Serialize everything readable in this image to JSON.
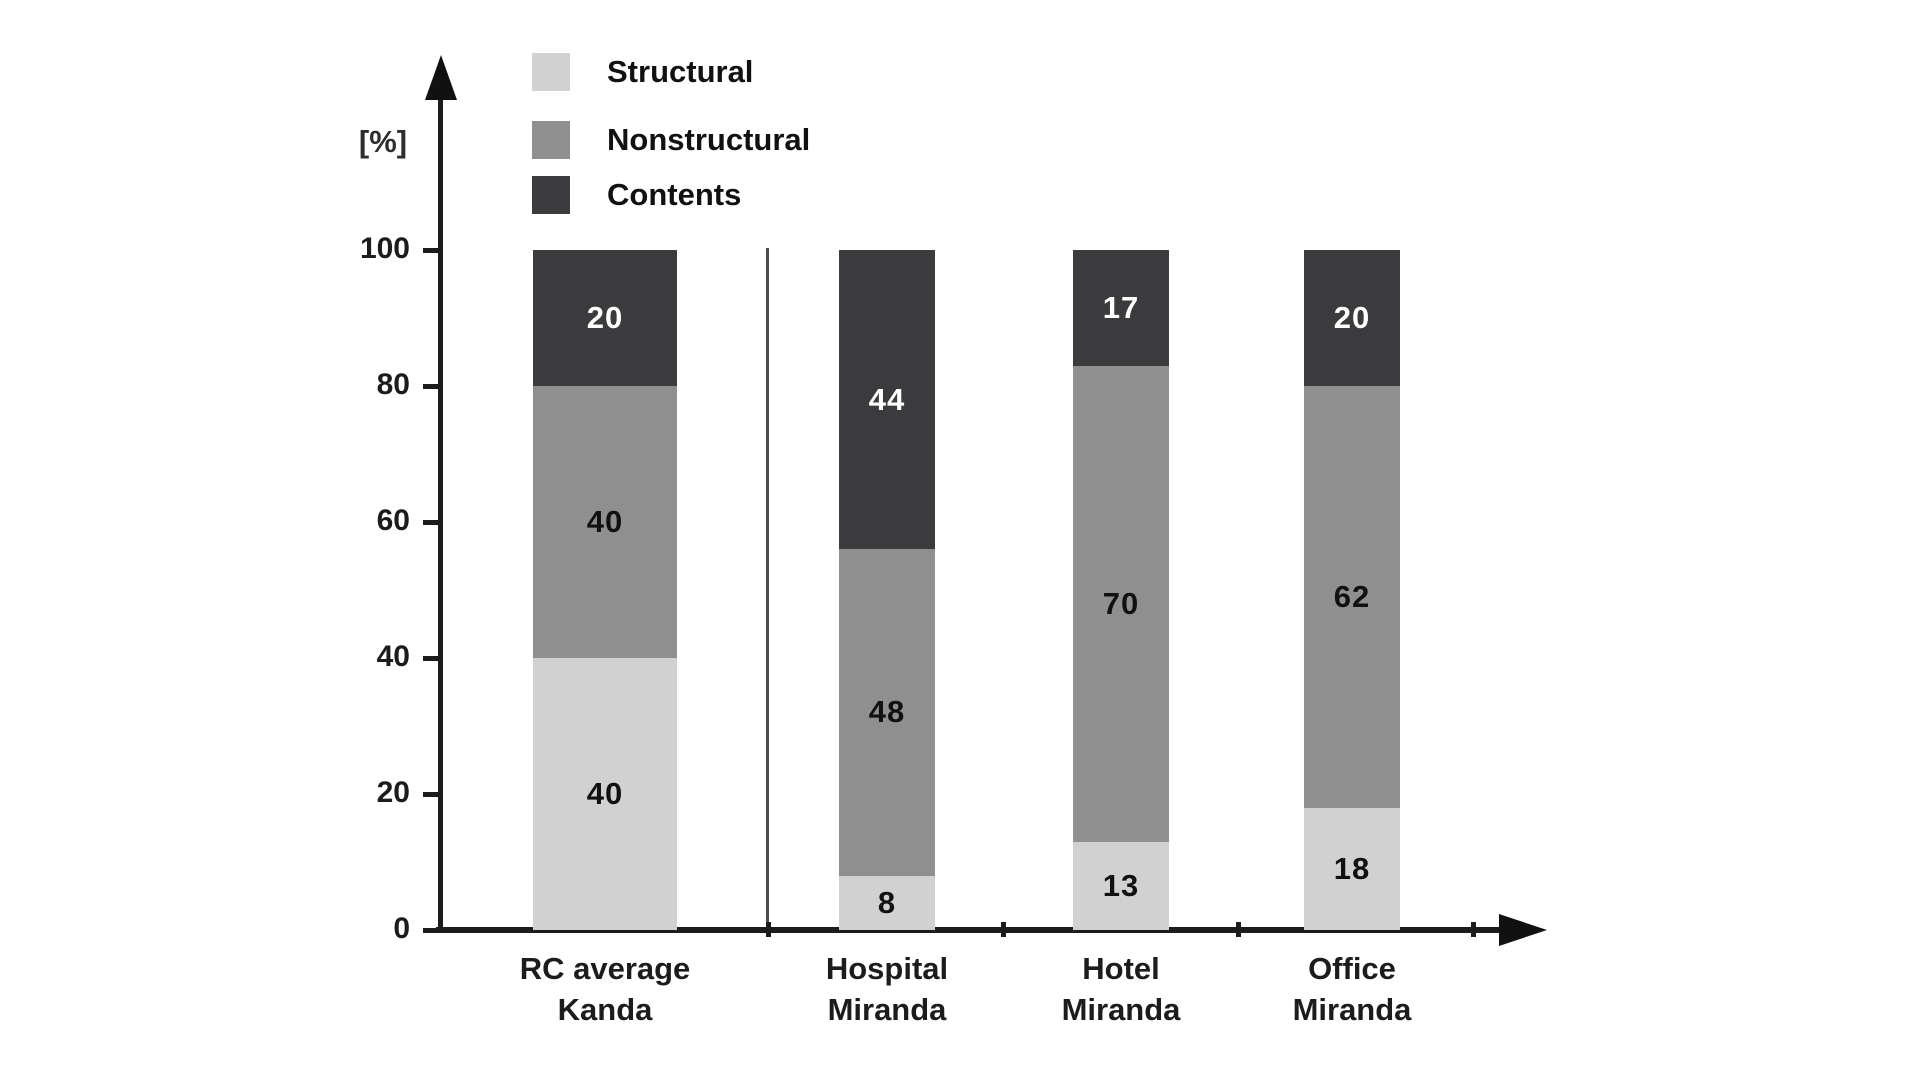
{
  "figure": {
    "background": "#ffffff",
    "axis_color": "#1c1c1c"
  },
  "chart_data": {
    "type": "bar",
    "stacked": true,
    "title": "",
    "xlabel": "",
    "ylabel": "[%]",
    "ylim": [
      0,
      100
    ],
    "yticks": [
      0,
      20,
      40,
      60,
      80,
      100
    ],
    "grid": false,
    "legend_position": "top-left",
    "categories": [
      {
        "line1": "RC average",
        "line2": "Kanda"
      },
      {
        "line1": "Hospital",
        "line2": "Miranda"
      },
      {
        "line1": "Hotel",
        "line2": "Miranda"
      },
      {
        "line1": "Office",
        "line2": "Miranda"
      }
    ],
    "series": [
      {
        "name": "Structural",
        "color": "#d1d1d1",
        "label_color": "#111111",
        "values": [
          40,
          8,
          13,
          18
        ]
      },
      {
        "name": "Nonstructural",
        "color": "#8f8f8f",
        "label_color": "#111111",
        "values": [
          40,
          48,
          70,
          62
        ]
      },
      {
        "name": "Contents",
        "color": "#3b3b3d",
        "label_color": "#ffffff",
        "values": [
          20,
          44,
          17,
          20
        ]
      }
    ],
    "annotations": {
      "divider_note": "thin vertical line separates RC average (Kanda) from the Miranda buildings"
    }
  }
}
